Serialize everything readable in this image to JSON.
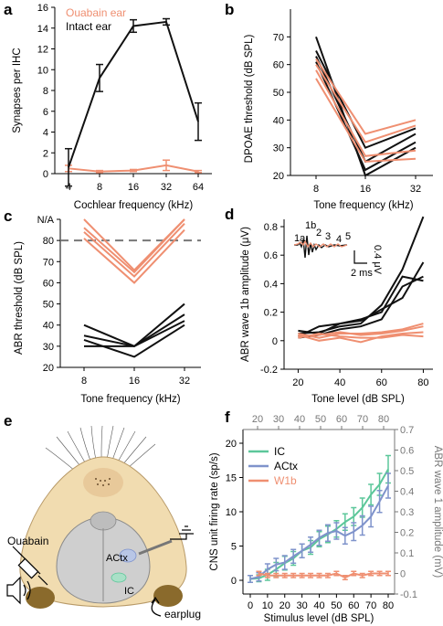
{
  "colors": {
    "ouabain": "#ef8f71",
    "intact": "#111111",
    "ic": "#5cc79a",
    "actx": "#7f93cb",
    "w1b": "#ef8f71",
    "gray": "#777777"
  },
  "chart_data": [
    {
      "panel": "a",
      "type": "line",
      "xlabel": "Cochlear frequency (kHz)",
      "ylabel": "Synapses per IHC",
      "categories": [
        "4",
        "8",
        "16",
        "32",
        "64"
      ],
      "ylim": [
        0,
        16
      ],
      "yticks": [
        "0",
        "2",
        "4",
        "6",
        "8",
        "10",
        "12",
        "14",
        "16"
      ],
      "legend": [
        "Ouabain ear",
        "Intact ear"
      ],
      "series": [
        {
          "name": "Intact ear",
          "values": [
            0.6,
            9.2,
            14.2,
            14.6,
            5.0
          ],
          "err": [
            1.8,
            1.3,
            0.6,
            0.3,
            1.8
          ]
        },
        {
          "name": "Ouabain ear",
          "values": [
            0.5,
            0.2,
            0.3,
            0.8,
            0.2
          ],
          "err": [
            0.3,
            0.1,
            0.1,
            0.5,
            0.1
          ]
        }
      ]
    },
    {
      "panel": "b",
      "type": "line",
      "xlabel": "Tone frequency (kHz)",
      "ylabel": "DPOAE threshold (dB SPL)",
      "categories": [
        "8",
        "16",
        "32"
      ],
      "ylim": [
        20,
        80
      ],
      "yticks": [
        "20",
        "30",
        "40",
        "50",
        "60",
        "70"
      ],
      "series": [
        {
          "group": "intact",
          "values": [
            65,
            30,
            37
          ]
        },
        {
          "group": "intact",
          "values": [
            63,
            25,
            35
          ]
        },
        {
          "group": "intact",
          "values": [
            61,
            22,
            32
          ]
        },
        {
          "group": "intact",
          "values": [
            70,
            20,
            30
          ]
        },
        {
          "group": "ouabain",
          "values": [
            55,
            25,
            26
          ]
        },
        {
          "group": "ouabain",
          "values": [
            58,
            27,
            29
          ]
        },
        {
          "group": "ouabain",
          "values": [
            60,
            32,
            38
          ]
        },
        {
          "group": "ouabain",
          "values": [
            62,
            35,
            40
          ]
        }
      ]
    },
    {
      "panel": "c",
      "type": "line",
      "xlabel": "Tone frequency (kHz)",
      "ylabel": "ABR threshold (dB SPL)",
      "categories": [
        "8",
        "16",
        "32"
      ],
      "ylim": [
        20,
        90
      ],
      "yticks": [
        "20",
        "30",
        "40",
        "50",
        "60",
        "70",
        "80",
        "N/A"
      ],
      "reference_line": 80,
      "series": [
        {
          "group": "intact",
          "values": [
            40,
            30,
            50
          ]
        },
        {
          "group": "intact",
          "values": [
            35,
            30,
            45
          ]
        },
        {
          "group": "intact",
          "values": [
            30,
            30,
            42
          ]
        },
        {
          "group": "intact",
          "values": [
            33,
            25,
            40
          ]
        },
        {
          "group": "ouabain",
          "values": [
            90,
            66,
            90
          ]
        },
        {
          "group": "ouabain",
          "values": [
            86,
            65,
            90
          ]
        },
        {
          "group": "ouabain",
          "values": [
            84,
            63,
            88
          ]
        },
        {
          "group": "ouabain",
          "values": [
            81,
            60,
            85
          ]
        }
      ]
    },
    {
      "panel": "d",
      "type": "line",
      "xlabel": "Tone level (dB SPL)",
      "ylabel": "ABR wave 1b amplitude (μV)",
      "x": [
        20,
        30,
        40,
        50,
        60,
        70,
        80
      ],
      "xlim": [
        15,
        82
      ],
      "ylim": [
        -0.2,
        0.8
      ],
      "yticks": [
        "-0.2",
        "0",
        "0.2",
        "0.4",
        "0.6",
        "0.8"
      ],
      "xticks": [
        "20",
        "40",
        "60",
        "80"
      ],
      "inset": {
        "wave_labels": [
          "1a",
          "1b",
          "2",
          "3",
          "4",
          "5"
        ],
        "scale_x": "2 ms",
        "scale_y": "0.4 μV"
      },
      "series": [
        {
          "group": "intact",
          "values": [
            0.05,
            0.06,
            0.1,
            0.12,
            0.25,
            0.5,
            0.87
          ]
        },
        {
          "group": "intact",
          "values": [
            0.03,
            0.1,
            0.12,
            0.15,
            0.2,
            0.45,
            0.42
          ]
        },
        {
          "group": "intact",
          "values": [
            0.07,
            0.05,
            0.12,
            0.14,
            0.22,
            0.3,
            0.55
          ]
        },
        {
          "group": "intact",
          "values": [
            0.02,
            0.04,
            0.08,
            0.1,
            0.15,
            0.38,
            0.45
          ]
        },
        {
          "group": "ouabain",
          "values": [
            0.05,
            0.02,
            0.05,
            0.05,
            0.06,
            0.08,
            0.12
          ]
        },
        {
          "group": "ouabain",
          "values": [
            0.03,
            0.04,
            0.06,
            0.04,
            0.05,
            0.07,
            0.1
          ]
        },
        {
          "group": "ouabain",
          "values": [
            0.04,
            0.0,
            0.02,
            -0.01,
            0.03,
            0.05,
            0.06
          ]
        },
        {
          "group": "ouabain",
          "values": [
            0.02,
            0.05,
            0.03,
            0.02,
            0.02,
            0.04,
            0.03
          ]
        }
      ]
    },
    {
      "panel": "f",
      "type": "line",
      "xlabel": "Stimulus level (dB SPL)",
      "ylabel": "CNS unit firing rate (sp/s)",
      "ylabel_right": "ABR wave 1 amplitude (mV)",
      "xticks": [
        "0",
        "10",
        "20",
        "30",
        "40",
        "50",
        "60",
        "70",
        "80"
      ],
      "xticks_top": [
        "20",
        "30",
        "40",
        "50",
        "60",
        "70",
        "80"
      ],
      "yticks": [
        "0",
        "5",
        "10",
        "15",
        "20"
      ],
      "yticks_right": [
        "-0.1",
        "0",
        "0.1",
        "0.2",
        "0.3",
        "0.4",
        "0.5",
        "0.6",
        "0.7"
      ],
      "ylim": [
        -2,
        22
      ],
      "ylim_right": [
        -0.1,
        0.7
      ],
      "x": [
        0,
        5,
        10,
        15,
        20,
        25,
        30,
        35,
        40,
        45,
        50,
        55,
        60,
        65,
        70,
        75,
        80
      ],
      "legend": [
        "IC",
        "ACtx",
        "W1b"
      ],
      "series": [
        {
          "name": "IC",
          "values": [
            0.2,
            0.3,
            0.8,
            1.6,
            2.5,
            3.2,
            4.3,
            4.8,
            6.0,
            6.7,
            7.5,
            8.5,
            9.3,
            10.6,
            12.5,
            14.0,
            16.2
          ],
          "err": [
            0.5,
            0.5,
            0.8,
            1.0,
            1.0,
            1.0,
            1.0,
            1.0,
            1.1,
            1.2,
            1.2,
            1.2,
            1.3,
            1.4,
            1.5,
            1.6,
            2.0
          ]
        },
        {
          "name": "ACtx",
          "values": [
            0.2,
            0.5,
            1.6,
            2.3,
            2.6,
            3.5,
            4.3,
            5.2,
            6.2,
            6.9,
            7.2,
            6.5,
            7.1,
            8.0,
            9.3,
            11.5,
            13.8
          ],
          "err": [
            0.5,
            0.6,
            0.8,
            0.9,
            1.0,
            1.0,
            1.0,
            1.1,
            1.1,
            1.2,
            1.2,
            1.2,
            1.3,
            1.4,
            1.5,
            1.6,
            1.8
          ]
        },
        {
          "name": "W1b",
          "axis": "right",
          "x": [
            5,
            10,
            15,
            20,
            25,
            30,
            35,
            40,
            45,
            50,
            55,
            60,
            65,
            70,
            75,
            80
          ],
          "values": [
            0.0,
            -0.01,
            -0.01,
            -0.01,
            -0.01,
            -0.01,
            -0.01,
            -0.01,
            -0.01,
            0.0,
            -0.02,
            0.0,
            -0.01,
            0.0,
            0.0,
            0.0
          ],
          "err": [
            0.01,
            0.01,
            0.01,
            0.01,
            0.01,
            0.01,
            0.01,
            0.01,
            0.01,
            0.01,
            0.01,
            0.01,
            0.01,
            0.01,
            0.01,
            0.01
          ]
        }
      ]
    }
  ],
  "panel_e": {
    "labels": {
      "ouabain": "Ouabain",
      "actx": "ACtx",
      "ic": "IC",
      "earplug": "earplug"
    }
  }
}
